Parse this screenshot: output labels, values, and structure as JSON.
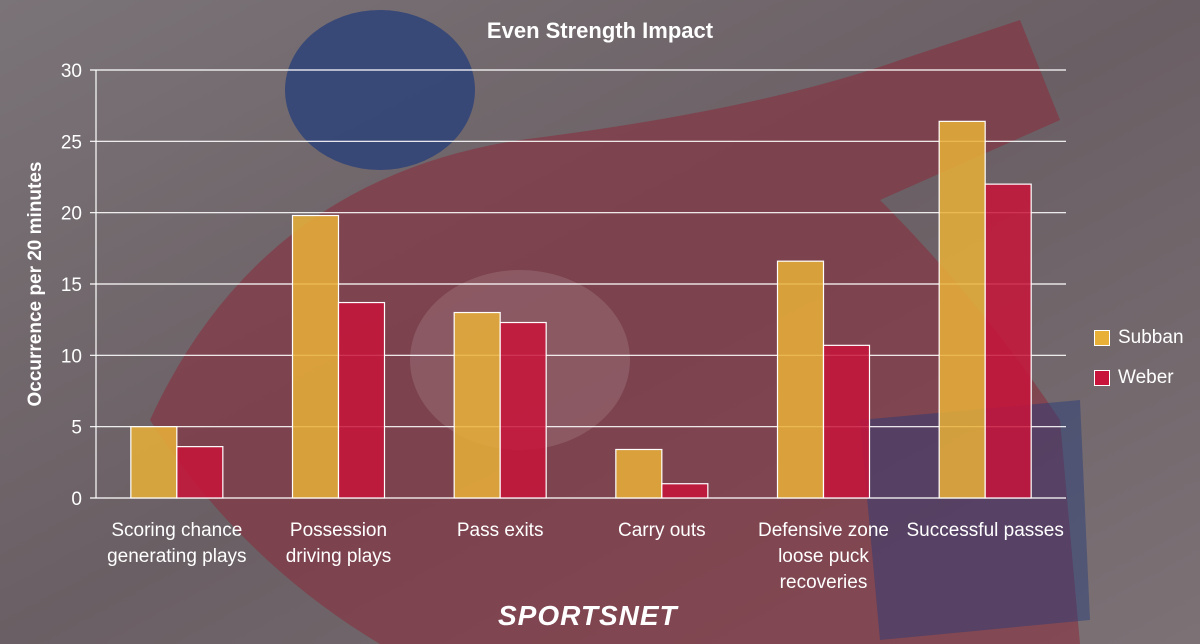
{
  "chart_data": {
    "type": "bar",
    "title": "Even Strength Impact",
    "ylabel": "Occurrence per 20 minutes",
    "xlabel": "",
    "ylim": [
      0,
      30
    ],
    "yticks": [
      0,
      5,
      10,
      15,
      20,
      25,
      30
    ],
    "grid": true,
    "legend_position": "right",
    "categories": [
      [
        "Scoring chance",
        "generating plays"
      ],
      [
        "Possession",
        "driving plays"
      ],
      [
        "Pass exits"
      ],
      [
        "Carry outs"
      ],
      [
        "Defensive zone",
        "loose puck",
        "recoveries"
      ],
      [
        "Successful passes"
      ]
    ],
    "series": [
      {
        "name": "Subban",
        "color": "#e9b038",
        "values": [
          5.0,
          19.8,
          13.0,
          3.4,
          16.6,
          26.4
        ]
      },
      {
        "name": "Weber",
        "color": "#c8143a",
        "values": [
          3.6,
          13.7,
          12.3,
          1.0,
          10.7,
          22.0
        ]
      }
    ]
  },
  "brand": {
    "left": "SPORTS",
    "right": "NET"
  }
}
